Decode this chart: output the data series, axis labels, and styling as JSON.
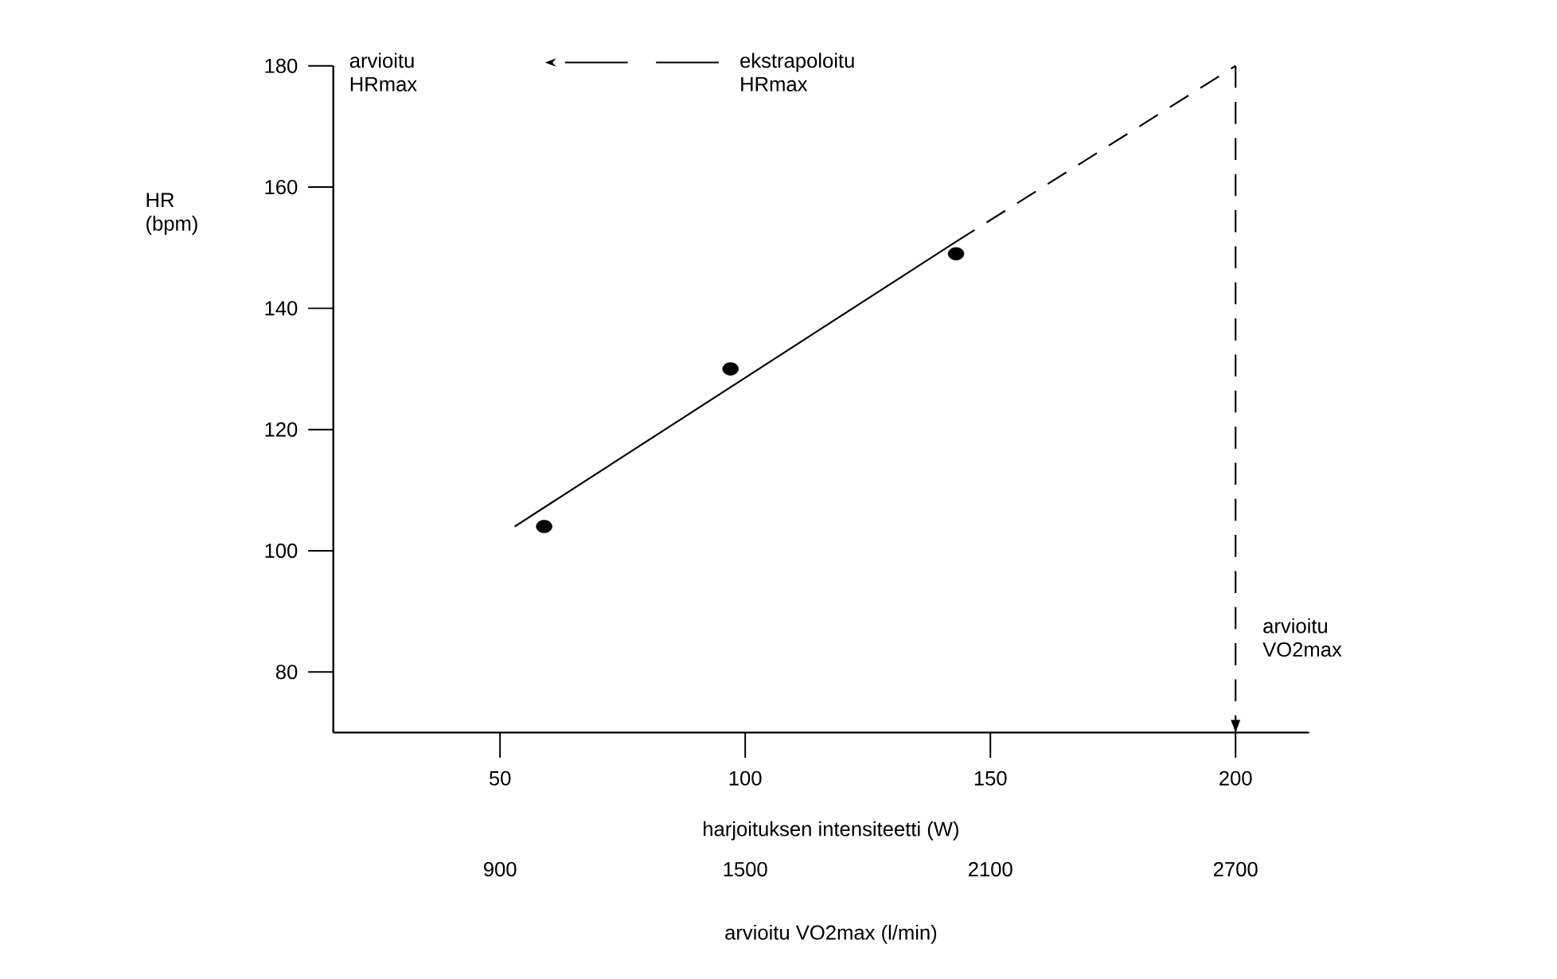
{
  "chart_data": {
    "type": "scatter",
    "xlabel": "harjoituksen intensiteetti (W)",
    "ylabel": "HR (bpm)",
    "x2label": "arvioitu VO2max (l/min)",
    "xlim": [
      16,
      215
    ],
    "xticks": [
      50,
      100,
      150,
      200
    ],
    "x2lim": [
      492,
      2880
    ],
    "x2ticks": [
      900,
      1500,
      2100,
      2700
    ],
    "ylim": [
      70,
      180
    ],
    "yticks": [
      80,
      100,
      120,
      140,
      160,
      180
    ],
    "series": [
      {
        "color": "#000000",
        "marker": "circle",
        "x": [
          59,
          97,
          143
        ],
        "values": [
          104,
          130,
          149
        ]
      },
      {
        "type": "line",
        "color": "#000000",
        "marker": "none",
        "line_style": "solid",
        "x": [
          53,
          143
        ],
        "values": [
          104,
          151
        ]
      },
      {
        "type": "line",
        "color": "#000000",
        "marker": "none",
        "line_style": "dashed",
        "x": [
          143,
          200
        ],
        "values": [
          151,
          180
        ]
      }
    ],
    "ref_lines": [
      {
        "axis": "x",
        "value": 200,
        "line_style": "dashed",
        "color": "#000000"
      }
    ],
    "annotations": [
      "arvioitu HRmax",
      "ekstrapoloitu HRmax",
      "arvioitu VO2max"
    ]
  }
}
